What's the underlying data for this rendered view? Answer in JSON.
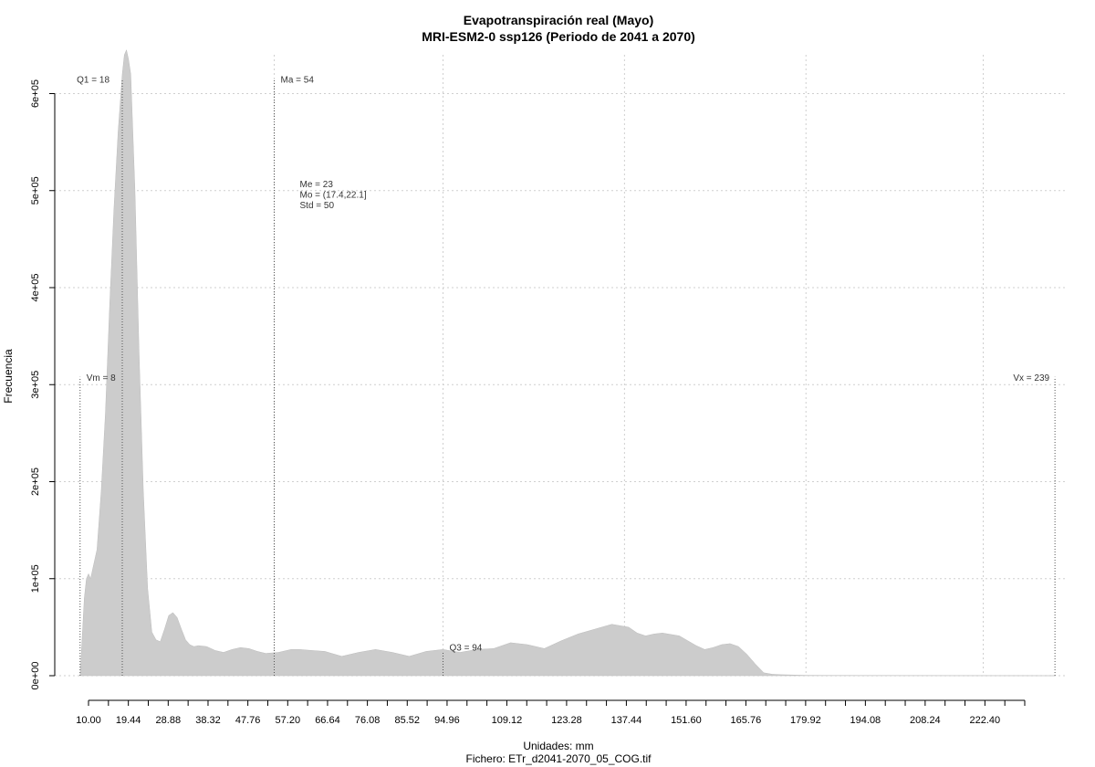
{
  "chart_data": {
    "type": "area",
    "title": "Evapotranspiración real (Mayo)",
    "subtitle": "MRI-ESM2-0 ssp126 (Periodo de 2041 a 2070)",
    "xlabel": "Unidades: mm",
    "ylabel": "Frecuencia",
    "caption": "Fichero: ETr_d2041-2070_05_COG.tif",
    "x_tick_labels": [
      "10.00",
      "19.44",
      "28.88",
      "38.32",
      "47.76",
      "57.20",
      "66.64",
      "76.08",
      "85.52",
      "94.96",
      "109.12",
      "123.28",
      "137.44",
      "151.60",
      "165.76",
      "179.92",
      "194.08",
      "208.24",
      "222.40"
    ],
    "x_tick_values": [
      10.0,
      19.44,
      28.88,
      38.32,
      47.76,
      57.2,
      66.64,
      76.08,
      85.52,
      94.96,
      109.12,
      123.28,
      137.44,
      151.6,
      165.76,
      179.92,
      194.08,
      208.24,
      222.4
    ],
    "x_minor_ticks": [
      10.0,
      14.72,
      19.44,
      24.16,
      28.88,
      33.6,
      38.32,
      43.04,
      47.76,
      52.48,
      57.2,
      61.92,
      66.64,
      71.36,
      76.08,
      80.8,
      85.52,
      90.24,
      94.96,
      99.68,
      104.4,
      109.12,
      113.84,
      118.56,
      123.28,
      128.0,
      132.72,
      137.44,
      142.16,
      146.88,
      151.6,
      156.32,
      161.04,
      165.76,
      170.48,
      175.2,
      179.92,
      184.64,
      189.36,
      194.08,
      198.8,
      203.52,
      208.24,
      212.96,
      217.68,
      222.4,
      227.12,
      231.84
    ],
    "y_tick_labels": [
      "0e+00",
      "1e+05",
      "2e+05",
      "3e+05",
      "4e+05",
      "5e+05",
      "6e+05"
    ],
    "y_tick_values": [
      0,
      100000,
      200000,
      300000,
      400000,
      500000,
      600000
    ],
    "xlim": [
      2,
      242
    ],
    "ylim": [
      0,
      640000
    ],
    "grid_x": [
      54,
      94,
      137,
      180,
      222
    ],
    "grid": true,
    "density": {
      "x": [
        8,
        8.5,
        9,
        9.5,
        10,
        10.5,
        11,
        12,
        13,
        14,
        15,
        16,
        17,
        18,
        18.5,
        19,
        19.5,
        20,
        21,
        22,
        23,
        24,
        25,
        26,
        27,
        28,
        29,
        30,
        31,
        32,
        33,
        34,
        35,
        36,
        38,
        40,
        42,
        44,
        46,
        48,
        50,
        52,
        55,
        58,
        60,
        63,
        66,
        70,
        74,
        78,
        82,
        86,
        90,
        94,
        98,
        102,
        106,
        110,
        114,
        118,
        122,
        126,
        130,
        134,
        138,
        140,
        142,
        144,
        146,
        150,
        152,
        154,
        156,
        158,
        160,
        162,
        164,
        166,
        168,
        170,
        172,
        174,
        176,
        178,
        180,
        185,
        200,
        239
      ],
      "y": [
        0,
        40000,
        80000,
        100000,
        105000,
        100000,
        110000,
        130000,
        190000,
        270000,
        380000,
        480000,
        560000,
        620000,
        640000,
        645000,
        635000,
        620000,
        500000,
        330000,
        190000,
        90000,
        45000,
        37000,
        35000,
        48000,
        62000,
        65000,
        60000,
        48000,
        37000,
        32000,
        30000,
        31000,
        30000,
        26000,
        24000,
        27000,
        29000,
        28000,
        25000,
        23000,
        24000,
        27000,
        27000,
        26000,
        25000,
        20000,
        24000,
        27000,
        24000,
        20000,
        25000,
        27000,
        24000,
        27000,
        28000,
        34000,
        32000,
        28000,
        36000,
        43000,
        48000,
        53000,
        50000,
        44000,
        41000,
        43000,
        44000,
        41000,
        36000,
        31000,
        27000,
        29000,
        32000,
        33000,
        30000,
        22000,
        12000,
        3000,
        1500,
        1000,
        800,
        600,
        400,
        300,
        200,
        0
      ]
    },
    "annotations": [
      {
        "label": "Q1 = 18",
        "x": 18,
        "y_top": 615000
      },
      {
        "label": "Ma = 54",
        "x": 54,
        "y_top": 615000
      },
      {
        "label": "Vm = 8",
        "x": 8,
        "y_top": 308000
      },
      {
        "label": "Vx = 239",
        "x": 239,
        "y_top": 308000
      },
      {
        "label": "Q3 = 94",
        "x": 94,
        "y_top": 25000
      }
    ],
    "stats": [
      "Me = 23",
      "Mo = (17.4,22.1]",
      "Std = 50"
    ],
    "colors": {
      "area": "#cccccc",
      "grid": "#cfcfcf",
      "annotation_line": "#555555",
      "text": "#000000"
    }
  }
}
